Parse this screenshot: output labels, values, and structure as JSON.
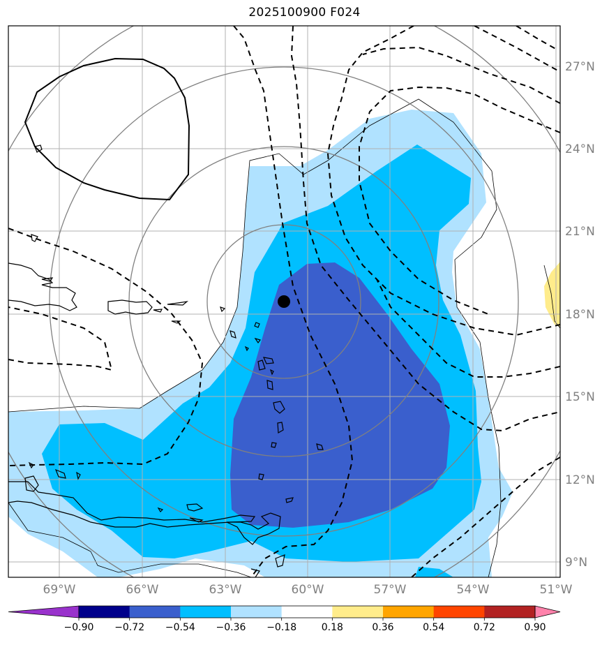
{
  "title": "2025100900 F024",
  "map": {
    "lat_ticks": [
      "27°N",
      "24°N",
      "21°N",
      "18°N",
      "15°N",
      "12°N",
      "9°N"
    ],
    "lon_ticks": [
      "69°W",
      "66°W",
      "63°W",
      "60°W",
      "57°W",
      "54°W",
      "51°W"
    ],
    "lon_range": [
      -70.8,
      -50.6
    ],
    "lat_range": [
      8.5,
      28.5
    ],
    "center_marker": {
      "lon": -60.8,
      "lat": 18.45
    }
  },
  "colorbar": {
    "levels": [
      "−0.90",
      "−0.72",
      "−0.54",
      "−0.36",
      "−0.18",
      "0.18",
      "0.36",
      "0.54",
      "0.72",
      "0.90"
    ],
    "colors": [
      "#9932cc",
      "#00008b",
      "#3a5fcd",
      "#00bfff",
      "#b0e2ff",
      "#ffffff",
      "#ffec8b",
      "#ffa500",
      "#ff4500",
      "#b22222",
      "#ff82ab"
    ]
  },
  "fill_colors": {
    "light_blue": "#b0e2ff",
    "sky_blue": "#00bfff",
    "royal_blue": "#3a5fcd",
    "yellow": "#ffec8b"
  }
}
